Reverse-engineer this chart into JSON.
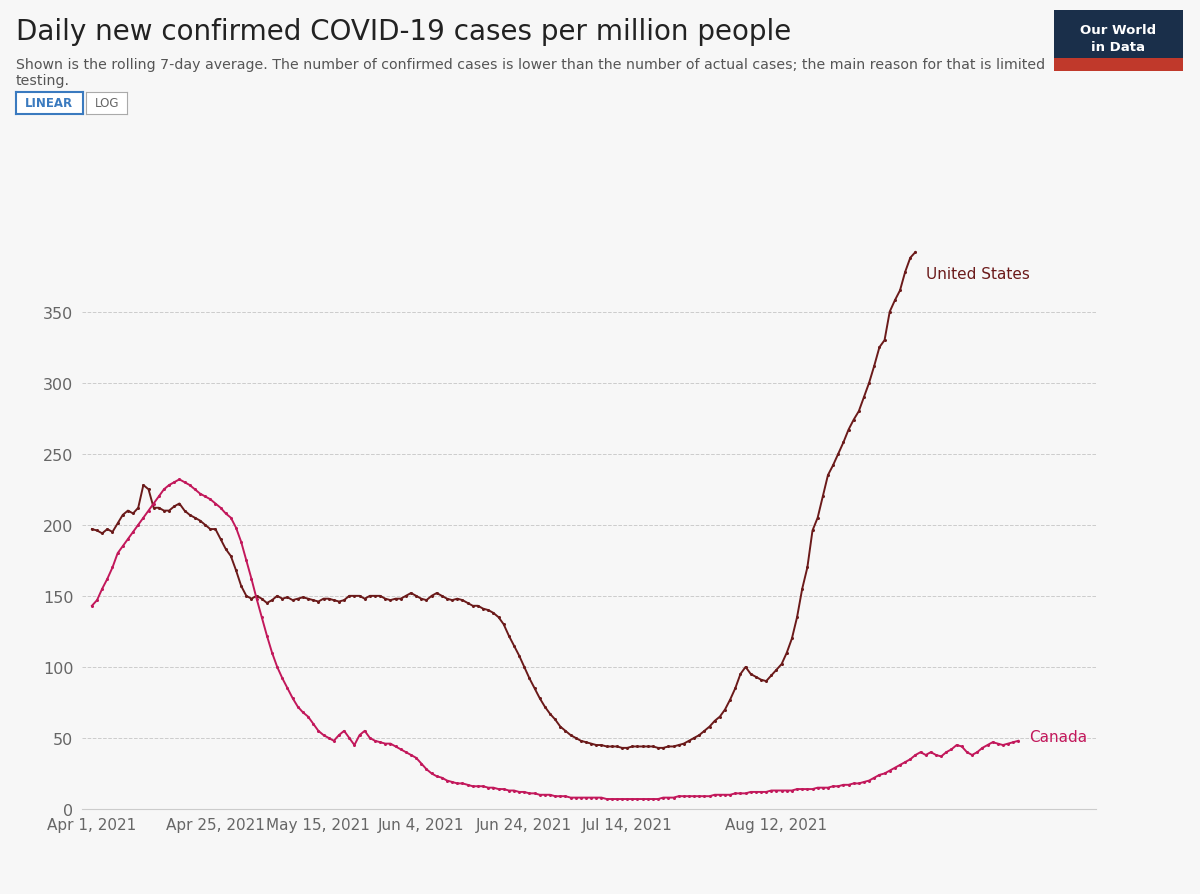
{
  "title": "Daily new confirmed COVID-19 cases per million people",
  "subtitle": "Shown is the rolling 7-day average. The number of confirmed cases is lower than the number of actual cases; the main reason for that is limited\ntesting.",
  "background_color": "#f7f7f7",
  "us_color": "#6b1a1a",
  "canada_color": "#c2185b",
  "ylim": [
    0,
    400
  ],
  "yticks": [
    0,
    50,
    100,
    150,
    200,
    250,
    300,
    350
  ],
  "xtick_labels": [
    "Apr 1, 2021",
    "Apr 25, 2021",
    "May 15, 2021",
    "Jun 4, 2021",
    "Jun 24, 2021",
    "Jul 14, 2021",
    "Aug 12, 2021"
  ],
  "xtick_positions": [
    0,
    24,
    44,
    64,
    84,
    104,
    133
  ],
  "us_data": [
    197,
    196,
    194,
    197,
    195,
    201,
    207,
    210,
    208,
    212,
    228,
    225,
    212,
    212,
    210,
    210,
    213,
    215,
    210,
    207,
    205,
    203,
    200,
    197,
    197,
    190,
    183,
    178,
    168,
    157,
    150,
    148,
    150,
    148,
    145,
    147,
    150,
    148,
    149,
    147,
    148,
    149,
    148,
    147,
    146,
    148,
    148,
    147,
    146,
    147,
    150,
    150,
    150,
    148,
    150,
    150,
    150,
    148,
    147,
    148,
    148,
    150,
    152,
    150,
    148,
    147,
    150,
    152,
    150,
    148,
    147,
    148,
    147,
    145,
    143,
    143,
    141,
    140,
    138,
    135,
    130,
    122,
    115,
    108,
    100,
    92,
    85,
    78,
    72,
    67,
    63,
    58,
    55,
    52,
    50,
    48,
    47,
    46,
    45,
    45,
    44,
    44,
    44,
    43,
    43,
    44,
    44,
    44,
    44,
    44,
    43,
    43,
    44,
    44,
    45,
    46,
    48,
    50,
    52,
    55,
    58,
    62,
    65,
    70,
    77,
    85,
    95,
    100,
    95,
    93,
    91,
    90,
    94,
    98,
    102,
    110,
    120,
    135,
    155,
    170,
    196,
    205,
    220,
    235,
    242,
    250,
    258,
    267,
    274,
    280,
    290,
    300,
    312,
    325,
    330,
    350,
    358,
    365,
    378,
    388,
    392
  ],
  "canada_data": [
    143,
    147,
    155,
    162,
    170,
    180,
    185,
    190,
    195,
    200,
    205,
    210,
    215,
    220,
    225,
    228,
    230,
    232,
    230,
    228,
    225,
    222,
    220,
    218,
    215,
    212,
    208,
    205,
    198,
    188,
    175,
    162,
    148,
    135,
    122,
    110,
    100,
    92,
    85,
    78,
    72,
    68,
    65,
    60,
    55,
    52,
    50,
    48,
    52,
    55,
    50,
    45,
    52,
    55,
    50,
    48,
    47,
    46,
    46,
    44,
    42,
    40,
    38,
    36,
    32,
    28,
    25,
    23,
    22,
    20,
    19,
    18,
    18,
    17,
    16,
    16,
    16,
    15,
    15,
    14,
    14,
    13,
    13,
    12,
    12,
    11,
    11,
    10,
    10,
    10,
    9,
    9,
    9,
    8,
    8,
    8,
    8,
    8,
    8,
    8,
    7,
    7,
    7,
    7,
    7,
    7,
    7,
    7,
    7,
    7,
    7,
    8,
    8,
    8,
    9,
    9,
    9,
    9,
    9,
    9,
    9,
    10,
    10,
    10,
    10,
    11,
    11,
    11,
    12,
    12,
    12,
    12,
    13,
    13,
    13,
    13,
    13,
    14,
    14,
    14,
    14,
    15,
    15,
    15,
    16,
    16,
    17,
    17,
    18,
    18,
    19,
    20,
    22,
    24,
    25,
    27,
    29,
    31,
    33,
    35,
    38,
    40,
    38,
    40,
    38,
    37,
    40,
    42,
    45,
    44,
    40,
    38,
    40,
    43,
    45,
    47,
    46,
    45,
    46,
    47,
    48
  ],
  "logo_bg": "#1a2f4a",
  "logo_red": "#c0392b"
}
